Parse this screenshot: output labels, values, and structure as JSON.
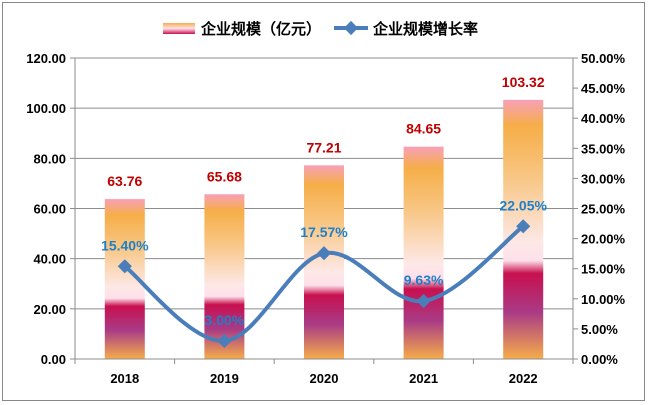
{
  "chart_data": {
    "type": "bar+line",
    "categories": [
      "2018",
      "2019",
      "2020",
      "2021",
      "2022"
    ],
    "series": [
      {
        "name": "企业规模（亿元）",
        "type": "bar",
        "axis": "left",
        "values": [
          63.76,
          65.68,
          77.21,
          84.65,
          103.32
        ],
        "labels": [
          "63.76",
          "65.68",
          "77.21",
          "84.65",
          "103.32"
        ]
      },
      {
        "name": "企业规模增长率",
        "type": "line",
        "axis": "right",
        "values": [
          15.4,
          3.0,
          17.57,
          9.63,
          22.05
        ],
        "labels": [
          "15.40%",
          "3.00%",
          "17.57%",
          "9.63%",
          "22.05%"
        ]
      }
    ],
    "left_axis": {
      "range": [
        0,
        120
      ],
      "ticks": [
        "0.00",
        "20.00",
        "40.00",
        "60.00",
        "80.00",
        "100.00",
        "120.00"
      ]
    },
    "right_axis": {
      "range": [
        0,
        50
      ],
      "ticks": [
        "0.00%",
        "5.00%",
        "10.00%",
        "15.00%",
        "20.00%",
        "25.00%",
        "30.00%",
        "35.00%",
        "40.00%",
        "45.00%",
        "50.00%"
      ]
    },
    "grid": true,
    "legend": "top",
    "colors": {
      "bar_label": "#c00000",
      "line": "#4a7ebb",
      "line_label": "#1f7fc8"
    }
  }
}
